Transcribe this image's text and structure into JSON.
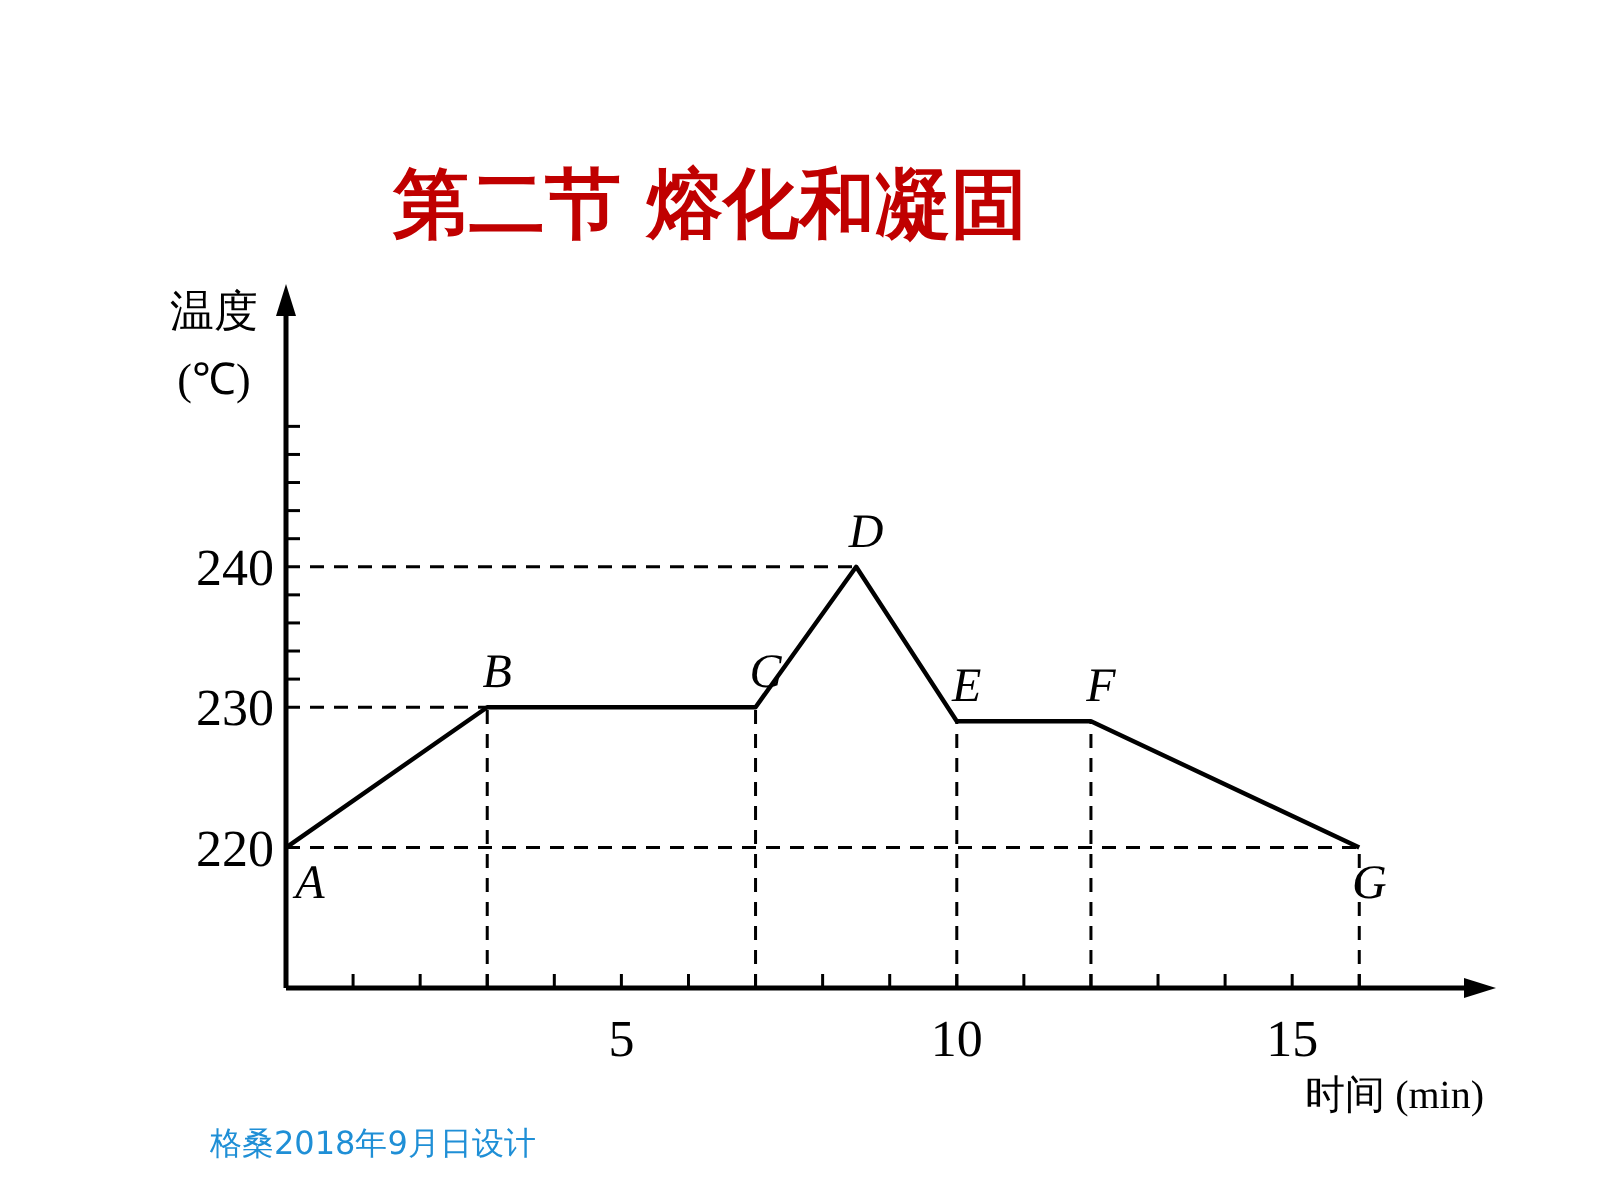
{
  "chart_data": {
    "type": "line",
    "title": "第二节 熔化和凝固",
    "xlabel": "时间 (min)",
    "ylabel": "温度\n(℃)",
    "x": [
      0,
      3,
      7,
      8.5,
      10,
      12,
      16
    ],
    "series": [
      {
        "color": "#000000",
        "values": [
          220,
          230,
          230,
          240,
          229,
          229,
          220
        ]
      }
    ],
    "xlim": [
      0,
      17.8
    ],
    "ylim": [
      210,
      259
    ],
    "xticks": [
      {
        "value": 1,
        "label": null
      },
      {
        "value": 2,
        "label": null
      },
      {
        "value": 3,
        "label": null
      },
      {
        "value": 4,
        "label": null
      },
      5,
      {
        "value": 6,
        "label": null
      },
      {
        "value": 7,
        "label": null
      },
      {
        "value": 8,
        "label": null
      },
      {
        "value": 9,
        "label": null
      },
      10,
      {
        "value": 11,
        "label": null
      },
      {
        "value": 12,
        "label": null
      },
      {
        "value": 13,
        "label": null
      },
      {
        "value": 14,
        "label": null
      },
      15,
      {
        "value": 16,
        "label": null
      }
    ],
    "yticks": [
      220,
      230,
      {
        "value": 232,
        "label": null
      },
      {
        "value": 234,
        "label": null
      },
      {
        "value": 236,
        "label": null
      },
      {
        "value": 238,
        "label": null
      },
      240,
      {
        "value": 242,
        "label": null
      },
      {
        "value": 244,
        "label": null
      },
      {
        "value": 246,
        "label": null
      },
      {
        "value": 248,
        "label": null
      },
      {
        "value": 250,
        "label": null
      }
    ],
    "ref_lines": [
      {
        "axis": "y",
        "value": 220,
        "line_style": "dashed"
      },
      {
        "axis": "y",
        "value": 230,
        "line_style": "dashed"
      },
      {
        "axis": "y",
        "value": 240,
        "line_style": "dashed"
      },
      {
        "axis": "x",
        "value": 3,
        "line_style": "dashed"
      },
      {
        "axis": "x",
        "value": 7,
        "line_style": "dashed"
      },
      {
        "axis": "x",
        "value": 10,
        "line_style": "dashed"
      },
      {
        "axis": "x",
        "value": 12,
        "line_style": "dashed"
      },
      {
        "axis": "x",
        "value": 16,
        "line_style": "dashed"
      }
    ],
    "annotations": [
      {
        "text": "A",
        "x": 0,
        "y": 220
      },
      {
        "text": "B",
        "x": 3,
        "y": 230
      },
      {
        "text": "C",
        "x": 7,
        "y": 230
      },
      {
        "text": "D",
        "x": 8.5,
        "y": 240
      },
      {
        "text": "E",
        "x": 10,
        "y": 229
      },
      {
        "text": "F",
        "x": 12,
        "y": 229
      },
      {
        "text": "G",
        "x": 16,
        "y": 220
      },
      "格桑2018年9月日设计"
    ],
    "grid": false,
    "marker": "none",
    "line_style": "solid"
  }
}
